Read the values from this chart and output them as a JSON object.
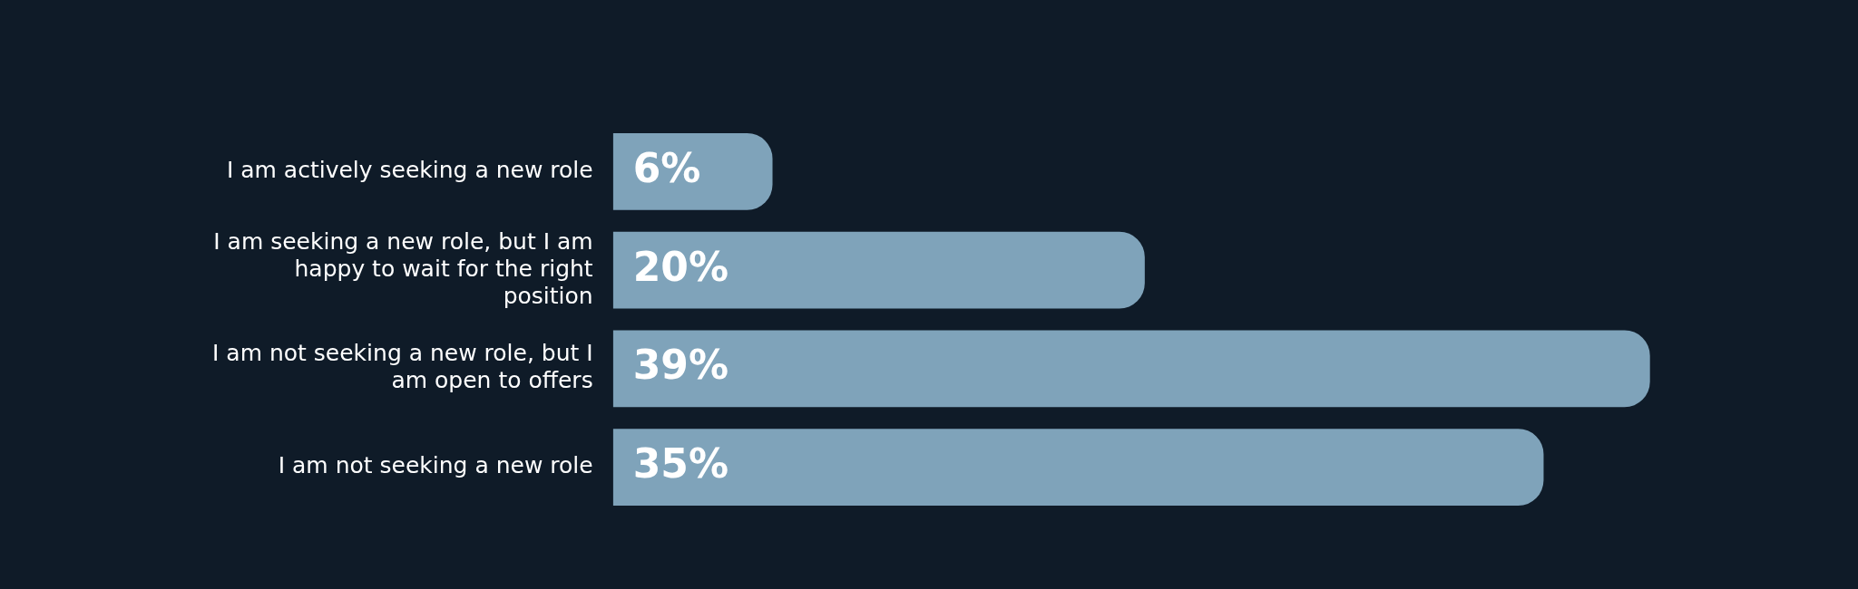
{
  "chart_data": {
    "type": "bar",
    "orientation": "horizontal",
    "categories": [
      "I am actively seeking a new role",
      "I am seeking a new role, but I am happy to wait for the right position",
      "I am not seeking a new role, but I am open to offers",
      "I am not seeking a new role"
    ],
    "values": [
      6,
      20,
      39,
      35
    ],
    "value_labels": [
      "6%",
      "20%",
      "39%",
      "35%"
    ],
    "color": "#7fa3ba"
  }
}
